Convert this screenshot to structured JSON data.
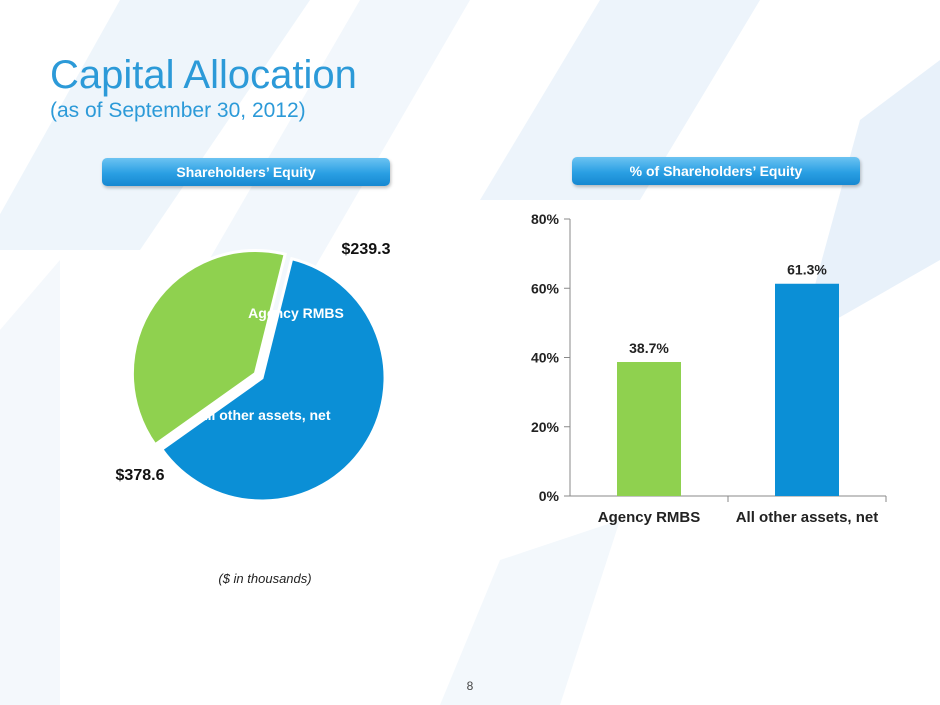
{
  "slide": {
    "title": "Capital Allocation",
    "subtitle": "(as of September 30, 2012)",
    "left_header": "Shareholders’ Equity",
    "right_header": "% of Shareholders’ Equity",
    "note": "($ in thousands)",
    "page_number": "8"
  },
  "colors": {
    "accent": "#2c9ad8",
    "agency": "#8fd14f",
    "other": "#0b8fd6"
  },
  "chart_data": [
    {
      "type": "pie",
      "title": "Shareholders’ Equity",
      "slices": [
        {
          "label": "Agency RMBS",
          "value": 239.3,
          "value_label": "$239.3",
          "color": "#8fd14f"
        },
        {
          "label": "All other assets, net",
          "value": 378.6,
          "value_label": "$378.6",
          "color": "#0b8fd6"
        }
      ]
    },
    {
      "type": "bar",
      "title": "% of Shareholders’ Equity",
      "categories": [
        "Agency RMBS",
        "All other assets, net"
      ],
      "values": [
        38.7,
        61.3
      ],
      "value_labels": [
        "38.7%",
        "61.3%"
      ],
      "colors": [
        "#8fd14f",
        "#0b8fd6"
      ],
      "ylim": [
        0,
        80
      ],
      "yticks": [
        "0%",
        "20%",
        "40%",
        "60%",
        "80%"
      ],
      "grid": false
    }
  ]
}
